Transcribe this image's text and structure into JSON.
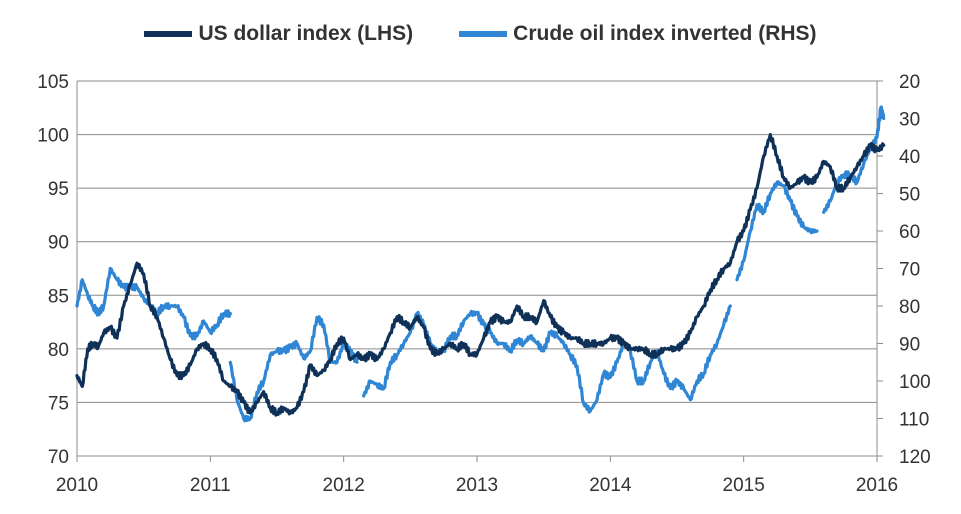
{
  "legend_position": "top",
  "chart_data": {
    "type": "line",
    "title": "",
    "grid": true,
    "x_ticks": [
      "2010",
      "2011",
      "2012",
      "2013",
      "2014",
      "2015",
      "2016"
    ],
    "xlim": [
      2010.0,
      2016.0
    ],
    "y_left": {
      "ylim": [
        70,
        105
      ],
      "ticks": [
        "70",
        "75",
        "80",
        "85",
        "90",
        "95",
        "100",
        "105"
      ]
    },
    "y_right": {
      "ylim": [
        120,
        20
      ],
      "inverted": true,
      "ticks": [
        "20",
        "30",
        "40",
        "50",
        "60",
        "70",
        "80",
        "90",
        "100",
        "110",
        "120"
      ]
    },
    "series": [
      {
        "name": "US dollar index (LHS)",
        "axis": "left",
        "color": "#0f3057",
        "x": [
          2010.0,
          2010.04,
          2010.08,
          2010.12,
          2010.16,
          2010.2,
          2010.25,
          2010.3,
          2010.35,
          2010.4,
          2010.45,
          2010.5,
          2010.55,
          2010.6,
          2010.65,
          2010.7,
          2010.75,
          2010.8,
          2010.85,
          2010.9,
          2010.95,
          2011.0,
          2011.05,
          2011.1,
          2011.15,
          2011.2,
          2011.25,
          2011.3,
          2011.35,
          2011.4,
          2011.45,
          2011.5,
          2011.55,
          2011.6,
          2011.65,
          2011.7,
          2011.75,
          2011.8,
          2011.85,
          2011.9,
          2011.95,
          2012.0,
          2012.05,
          2012.1,
          2012.15,
          2012.2,
          2012.25,
          2012.3,
          2012.35,
          2012.4,
          2012.45,
          2012.5,
          2012.55,
          2012.6,
          2012.65,
          2012.7,
          2012.75,
          2012.8,
          2012.85,
          2012.9,
          2012.95,
          2013.0,
          2013.05,
          2013.1,
          2013.15,
          2013.2,
          2013.25,
          2013.3,
          2013.35,
          2013.4,
          2013.45,
          2013.5,
          2013.55,
          2013.6,
          2013.65,
          2013.7,
          2013.75,
          2013.8,
          2013.85,
          2013.9,
          2013.95,
          2014.0,
          2014.05,
          2014.1,
          2014.15,
          2014.2,
          2014.25,
          2014.3,
          2014.35,
          2014.4,
          2014.45,
          2014.5,
          2014.55,
          2014.6,
          2014.65,
          2014.7,
          2014.75,
          2014.8,
          2014.85,
          2014.9,
          2014.95,
          2015.0,
          2015.05,
          2015.1,
          2015.15,
          2015.2,
          2015.25,
          2015.3,
          2015.35,
          2015.4,
          2015.45,
          2015.5,
          2015.55,
          2015.6,
          2015.65,
          2015.7,
          2015.75,
          2015.8,
          2015.85,
          2015.9,
          2015.95,
          2016.0,
          2016.05
        ],
        "values": [
          77.5,
          76.5,
          80.0,
          80.5,
          80.2,
          81.5,
          82.0,
          81.0,
          84.0,
          86.0,
          88.0,
          87.0,
          84.0,
          83.0,
          81.0,
          79.0,
          77.5,
          77.5,
          78.5,
          80.0,
          80.5,
          80.0,
          79.0,
          77.0,
          76.5,
          76.0,
          75.0,
          74.0,
          75.0,
          76.0,
          74.5,
          74.0,
          74.5,
          74.0,
          74.5,
          76.0,
          78.5,
          77.5,
          78.0,
          79.0,
          80.5,
          81.0,
          79.0,
          79.5,
          79.0,
          79.5,
          79.0,
          80.0,
          81.5,
          83.0,
          82.5,
          82.0,
          83.0,
          82.0,
          80.0,
          79.5,
          80.0,
          80.5,
          80.0,
          80.5,
          79.5,
          79.5,
          81.0,
          82.5,
          83.0,
          82.5,
          82.5,
          84.0,
          83.0,
          83.0,
          82.5,
          84.5,
          83.0,
          82.0,
          81.5,
          81.0,
          81.0,
          80.5,
          80.5,
          80.5,
          80.5,
          81.0,
          81.0,
          80.5,
          80.0,
          80.0,
          80.0,
          79.5,
          79.5,
          80.0,
          80.0,
          80.0,
          80.5,
          81.5,
          83.0,
          84.0,
          85.5,
          86.5,
          87.5,
          88.0,
          90.0,
          91.0,
          93.0,
          95.0,
          98.0,
          100.0,
          98.0,
          96.0,
          95.0,
          95.5,
          96.0,
          95.5,
          96.0,
          97.5,
          97.0,
          95.0,
          95.0,
          96.0,
          97.0,
          98.0,
          99.0,
          98.5,
          99.0
        ],
        "breaks": []
      },
      {
        "name": "Crude oil index inverted (RHS)",
        "axis": "right",
        "color": "#2f86d4",
        "x": [
          2010.0,
          2010.04,
          2010.08,
          2010.12,
          2010.16,
          2010.2,
          2010.25,
          2010.3,
          2010.35,
          2010.4,
          2010.45,
          2010.5,
          2010.55,
          2010.6,
          2010.65,
          2010.7,
          2010.75,
          2010.8,
          2010.85,
          2010.9,
          2010.95,
          2011.0,
          2011.05,
          2011.1,
          2011.15,
          null,
          2011.15,
          2011.2,
          2011.25,
          2011.3,
          2011.35,
          2011.4,
          2011.45,
          2011.5,
          2011.55,
          2011.6,
          2011.65,
          2011.7,
          2011.75,
          2011.8,
          2011.85,
          2011.9,
          2011.95,
          2012.0,
          2012.05,
          2012.1,
          null,
          2012.15,
          2012.2,
          2012.25,
          2012.3,
          2012.35,
          2012.4,
          2012.45,
          2012.5,
          2012.55,
          2012.6,
          2012.65,
          2012.7,
          2012.75,
          2012.8,
          2012.85,
          2012.9,
          2012.95,
          2013.0,
          2013.05,
          2013.1,
          2013.15,
          2013.2,
          2013.25,
          2013.3,
          2013.35,
          2013.4,
          2013.45,
          2013.5,
          2013.55,
          2013.6,
          2013.65,
          2013.7,
          2013.75,
          2013.8,
          2013.85,
          2013.9,
          2013.95,
          2014.0,
          2014.05,
          2014.1,
          2014.15,
          2014.2,
          2014.25,
          2014.3,
          2014.35,
          2014.4,
          2014.45,
          2014.5,
          2014.55,
          2014.6,
          2014.65,
          2014.7,
          2014.75,
          2014.8,
          2014.85,
          2014.9,
          null,
          2014.95,
          2015.0,
          2015.05,
          2015.1,
          2015.15,
          2015.2,
          2015.25,
          2015.3,
          2015.35,
          2015.4,
          2015.45,
          2015.5,
          2015.55,
          null,
          2015.6,
          2015.65,
          2015.7,
          2015.75,
          2015.8,
          2015.85,
          2015.9,
          2015.95,
          2016.0,
          2016.03,
          2016.05
        ],
        "values": [
          80,
          73,
          77,
          80,
          82,
          80,
          70,
          73,
          75,
          75,
          75,
          78,
          80,
          82,
          80,
          80,
          80,
          83,
          88,
          88,
          84,
          87,
          85,
          82,
          82,
          null,
          95,
          105,
          110,
          110,
          103,
          100,
          93,
          92,
          92,
          91,
          90,
          94,
          92,
          83,
          85,
          95,
          95,
          90,
          92,
          95,
          null,
          104,
          100,
          101,
          102,
          95,
          93,
          90,
          87,
          82,
          85,
          90,
          92,
          92,
          88,
          88,
          84,
          82,
          82,
          85,
          87,
          90,
          90,
          92,
          89,
          90,
          88,
          90,
          92,
          87,
          88,
          90,
          93,
          96,
          106,
          108,
          105,
          98,
          99,
          95,
          90,
          92,
          100,
          100,
          95,
          92,
          98,
          102,
          100,
          102,
          105,
          100,
          98,
          93,
          90,
          85,
          80,
          null,
          73,
          68,
          60,
          53,
          55,
          50,
          47,
          48,
          52,
          56,
          59,
          60,
          60,
          null,
          55,
          52,
          47,
          45,
          45,
          47,
          42,
          38,
          35,
          27,
          30
        ],
        "breaks": []
      }
    ]
  }
}
